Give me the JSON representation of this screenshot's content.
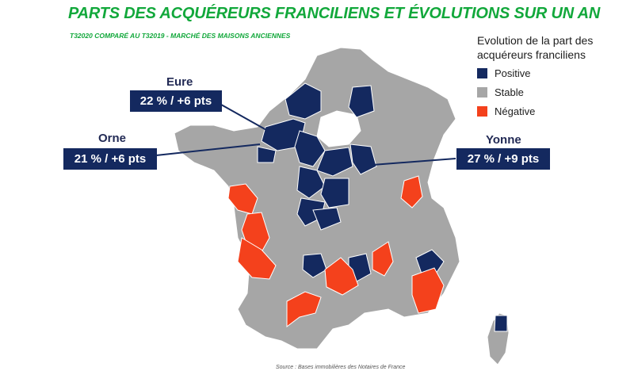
{
  "title": "PARTS DES ACQUÉREURS FRANCILIENS ET ÉVOLUTIONS SUR UN AN",
  "subtitle": "T32020 COMPARÉ AU T32019 - MARCHÉ DES MAISONS ANCIENNES",
  "legend": {
    "title": "Evolution de la part des acquéreurs franciliens",
    "items": [
      {
        "label": "Positive",
        "color": "#14295f"
      },
      {
        "label": "Stable",
        "color": "#a6a6a6"
      },
      {
        "label": "Négative",
        "color": "#f4411c"
      }
    ]
  },
  "callouts": [
    {
      "name": "Eure",
      "value": "22 % / +6 pts"
    },
    {
      "name": "Orne",
      "value": "21 % / +6 pts"
    },
    {
      "name": "Yonne",
      "value": "27 % / +9 pts"
    }
  ],
  "source": "Source : Bases immobilières des Notaires de France",
  "colors": {
    "positive": "#14295f",
    "stable": "#a6a6a6",
    "negative": "#f4411c",
    "title": "#12a83b"
  }
}
